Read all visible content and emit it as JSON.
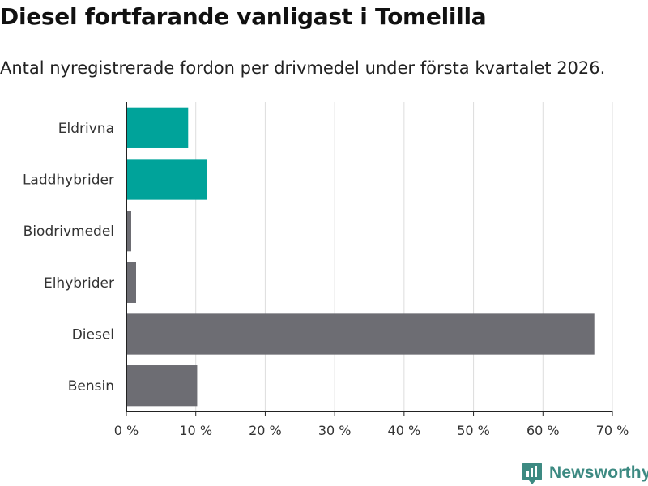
{
  "chart_data": {
    "type": "bar",
    "orientation": "horizontal",
    "title": "Diesel fortfarande vanligast i Tomelilla",
    "subtitle": "Antal nyregistrerade fordon per drivmedel under första kvartalet 2026.",
    "categories": [
      "Eldrivna",
      "Laddhybrider",
      "Biodrivmedel",
      "Elhybrider",
      "Diesel",
      "Bensin"
    ],
    "values": [
      8.9,
      11.6,
      0.7,
      1.4,
      67.4,
      10.2
    ],
    "colors": [
      "#00a39a",
      "#00a39a",
      "#6d6d73",
      "#6d6d73",
      "#6d6d73",
      "#6d6d73"
    ],
    "xlabel": "",
    "ylabel": "",
    "xlim": [
      0,
      70
    ],
    "xticks": [
      0,
      10,
      20,
      30,
      40,
      50,
      60,
      70
    ],
    "xtick_labels": [
      "0 %",
      "10 %",
      "20 %",
      "30 %",
      "40 %",
      "50 %",
      "60 %",
      "70 %"
    ],
    "grid": true
  },
  "brand": {
    "name": "Newsworthy",
    "color": "#3d8a82"
  }
}
